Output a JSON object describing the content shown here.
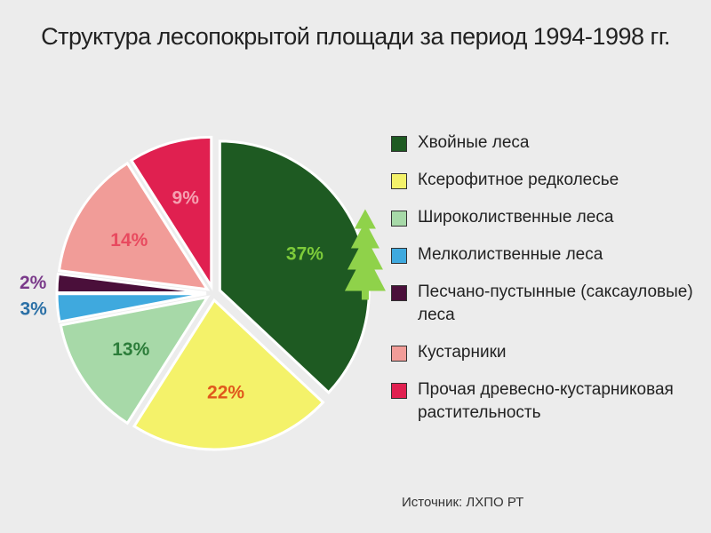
{
  "chart_data": {
    "type": "pie",
    "title": "Структура лесопокрытой площади за период 1994-1998 гг.",
    "categories": [
      "Хвойные леса",
      "Ксерофитное редколесье",
      "Широколиственные леса",
      "Мелколиственные леса",
      "Песчано-пустынные (саксауловые) леса",
      "Кустарники",
      "Прочая древесно-кустарниковая растительность"
    ],
    "values": [
      37,
      22,
      13,
      3,
      2,
      14,
      9
    ],
    "labels": [
      "37%",
      "22%",
      "13%",
      "3%",
      "2%",
      "14%",
      "9%"
    ],
    "colors": [
      "#1e5a22",
      "#f4f26a",
      "#a7d9a8",
      "#3fa9de",
      "#4a0f3a",
      "#f19c98",
      "#e02050"
    ],
    "label_colors": [
      "#7dcb3a",
      "#e0581c",
      "#2c7d3a",
      "#2b70a6",
      "#7a3a8a",
      "#e84a5f",
      "#f5a0b0"
    ],
    "legend_position": "right",
    "icons": [
      "tree-icon"
    ]
  },
  "legend": {
    "items": [
      {
        "label": "Хвойные леса",
        "color": "#1e5a22"
      },
      {
        "label": "Ксерофитное редколесье",
        "color": "#f4f26a"
      },
      {
        "label": "Широколиственные леса",
        "color": "#a7d9a8"
      },
      {
        "label": "Мелколиственные леса",
        "color": "#3fa9de"
      },
      {
        "label": "Песчано-пустынные (саксауловые) леса",
        "color": "#4a0f3a"
      },
      {
        "label": "Кустарники",
        "color": "#f19c98"
      },
      {
        "label": "Прочая древесно-кустарниковая растительность",
        "color": "#e02050"
      }
    ]
  },
  "source": "Источник: ЛХПО РТ"
}
